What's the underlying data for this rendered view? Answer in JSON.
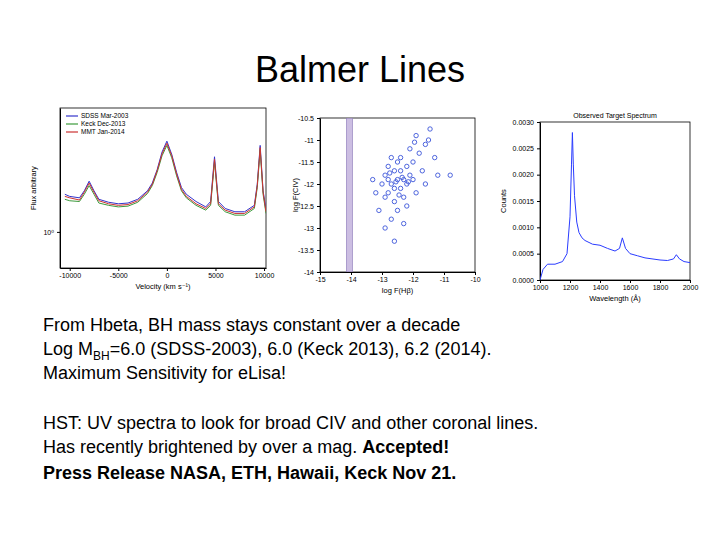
{
  "slide": {
    "title": "Balmer Lines",
    "lines": [
      [
        {
          "text": "From Hbeta, BH mass stays constant over a decade"
        }
      ],
      [
        {
          "text": "Log M"
        },
        {
          "text": "BH",
          "sub": true
        },
        {
          "text": "=6.0 (SDSS-2003), 6.0 (Keck 2013), 6.2 (2014)."
        }
      ],
      [
        {
          "text": "Maximum Sensitivity for eLisa!"
        }
      ],
      [
        {
          "text": "HST: UV spectra to look for broad CIV and other coronal lines."
        }
      ],
      [
        {
          "text": "Has recently brightened by over a mag.  "
        },
        {
          "text": "Accepted!",
          "bold": true
        }
      ],
      [
        {
          "text": "Press Release NASA, ETH, Hawaii, Keck Nov 21.",
          "bold": true
        }
      ]
    ]
  },
  "chart_data": [
    {
      "type": "line",
      "x_label": "Velocity (km s⁻¹)",
      "y_label": "Flux arbitrary",
      "log": "y",
      "legend": "upper left",
      "x": [
        -10500,
        -10000,
        -9000,
        -8500,
        -8000,
        -7500,
        -7000,
        -6000,
        -5000,
        -4000,
        -3000,
        -2000,
        -1500,
        -1000,
        -500,
        0,
        500,
        1000,
        1500,
        2000,
        3000,
        4000,
        4500,
        4900,
        5300,
        6000,
        7000,
        8000,
        9000,
        9300,
        9600,
        9900,
        10200
      ],
      "series": [
        {
          "name": "SDSS Mar-2003",
          "color": "#3333cc",
          "values": [
            1.45,
            1.42,
            1.4,
            1.5,
            1.65,
            1.5,
            1.38,
            1.34,
            1.32,
            1.33,
            1.38,
            1.5,
            1.62,
            1.85,
            2.2,
            2.45,
            2.15,
            1.8,
            1.55,
            1.45,
            1.35,
            1.28,
            1.35,
            2.1,
            1.35,
            1.26,
            1.22,
            1.22,
            1.3,
            1.6,
            2.35,
            1.5,
            1.25
          ]
        },
        {
          "name": "Keck Dec-2013",
          "color": "#3c9a3c",
          "values": [
            1.38,
            1.36,
            1.35,
            1.45,
            1.58,
            1.45,
            1.33,
            1.3,
            1.28,
            1.29,
            1.34,
            1.46,
            1.58,
            1.8,
            2.12,
            2.35,
            2.08,
            1.74,
            1.5,
            1.4,
            1.3,
            1.24,
            1.3,
            2.0,
            1.3,
            1.22,
            1.18,
            1.18,
            1.26,
            1.55,
            2.25,
            1.45,
            1.2
          ]
        },
        {
          "name": "MMT Jan-2014",
          "color": "#cc3333",
          "values": [
            1.42,
            1.4,
            1.37,
            1.48,
            1.62,
            1.48,
            1.36,
            1.32,
            1.3,
            1.31,
            1.36,
            1.48,
            1.6,
            1.83,
            2.16,
            2.4,
            2.12,
            1.77,
            1.52,
            1.42,
            1.32,
            1.26,
            1.32,
            2.05,
            1.32,
            1.24,
            1.2,
            1.2,
            1.28,
            1.58,
            2.3,
            1.48,
            1.22
          ]
        }
      ],
      "xlim": [
        -11000,
        10200
      ],
      "xticks": [
        -10000,
        -5000,
        0,
        5000,
        10000
      ],
      "ylim": [
        0.7,
        3.4
      ],
      "yticks": [
        {
          "value": 1,
          "label": "10⁰"
        }
      ]
    },
    {
      "type": "scatter",
      "x_label": "log F(Hβ)",
      "y_label": "log F(CIV)",
      "color": "#3b55d9",
      "marker": "open-circle",
      "x": [
        -12.9,
        -12.7,
        -12.5,
        -12.6,
        -12.4,
        -12.8,
        -12.3,
        -12.2,
        -12.0,
        -11.8,
        -11.6,
        -12.1,
        -11.9,
        -12.4,
        -12.6,
        -12.9,
        -13.0,
        -13.1,
        -12.7,
        -12.5,
        -12.3,
        -12.2,
        -12.0,
        -11.7,
        -11.5,
        -11.3,
        -11.2,
        -12.8,
        -12.5,
        -12.1,
        -12.9,
        -12.6,
        -12.3,
        -13.2,
        -13.3,
        -11.9,
        -12.7,
        -12.4,
        -12.2,
        -10.8,
        -11.6,
        -12.8,
        -12.6,
        -12.35,
        -12.55,
        -12.75,
        -12.15,
        -11.45,
        -11.95,
        -12.45
      ],
      "values": [
        -11.8,
        -12.0,
        -11.9,
        -11.7,
        -12.1,
        -12.2,
        -11.9,
        -11.6,
        -11.5,
        -11.3,
        -11.1,
        -11.2,
        -10.9,
        -11.4,
        -12.4,
        -12.3,
        -12.0,
        -12.6,
        -12.8,
        -12.6,
        -12.3,
        -12.0,
        -11.9,
        -11.7,
        -11.0,
        -11.4,
        -11.8,
        -11.6,
        -11.5,
        -11.8,
        -13.0,
        -13.3,
        -12.9,
        -12.2,
        -11.9,
        -12.2,
        -11.4,
        -11.7,
        -12.5,
        -11.8,
        -12.0,
        -11.9,
        -12.1,
        -11.85,
        -11.95,
        -11.75,
        -11.95,
        -10.75,
        -11.05,
        -12.25
      ],
      "band": [
        -14.15,
        -13.95
      ],
      "xlim": [
        -15,
        -10
      ],
      "xticks": [
        -15,
        -14,
        -13,
        -12,
        -11,
        -10
      ],
      "ylim": [
        -14,
        -10.5
      ],
      "yticks": [
        -14,
        -13.5,
        -13,
        -12.5,
        -12,
        -11.5,
        -11,
        -10.5
      ]
    },
    {
      "type": "line",
      "title": "Observed Target Spectrum",
      "x_label": "Wavelength (Å)",
      "y_label": "Counts",
      "color": "#2a3cff",
      "x": [
        1000,
        1020,
        1050,
        1100,
        1150,
        1180,
        1200,
        1210,
        1216,
        1222,
        1230,
        1245,
        1260,
        1280,
        1300,
        1350,
        1400,
        1450,
        1500,
        1530,
        1549,
        1570,
        1600,
        1650,
        1700,
        1800,
        1850,
        1890,
        1909,
        1930,
        1960,
        2000
      ],
      "values": [
        0,
        0.0002,
        0.0003,
        0.0003,
        0.00035,
        0.0005,
        0.0012,
        0.0022,
        0.0028,
        0.0022,
        0.0016,
        0.0011,
        0.0009,
        0.0008,
        0.00075,
        0.00068,
        0.00066,
        0.0006,
        0.00055,
        0.0006,
        0.0008,
        0.0006,
        0.0005,
        0.00046,
        0.00042,
        0.00038,
        0.00037,
        0.0004,
        0.00048,
        0.0004,
        0.00035,
        0.00033
      ],
      "xlim": [
        1000,
        2000
      ],
      "xticks": [
        1000,
        1200,
        1400,
        1600,
        1800,
        2000
      ],
      "ylim": [
        0,
        0.003
      ],
      "yticks": [
        {
          "value": 0,
          "label": "0.0000"
        },
        {
          "value": 0.0005,
          "label": "0.0005"
        },
        {
          "value": 0.001,
          "label": "0.0010"
        },
        {
          "value": 0.0015,
          "label": "0.0015"
        },
        {
          "value": 0.002,
          "label": "0.0020"
        },
        {
          "value": 0.0025,
          "label": "0.0025"
        },
        {
          "value": 0.003,
          "label": "0.0030"
        }
      ]
    }
  ]
}
